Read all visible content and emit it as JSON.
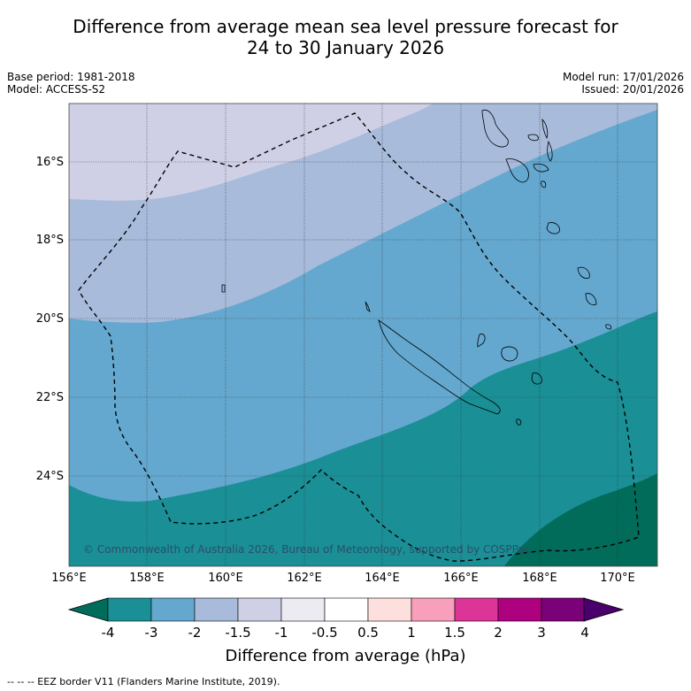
{
  "title_line1": "Difference from average mean sea level pressure forecast for",
  "title_line2": "24 to 30 January 2026",
  "base_period": "Base period: 1981-2018",
  "model": "Model: ACCESS-S2",
  "model_run": "Model run: 17/01/2026",
  "issued": "Issued: 20/01/2026",
  "copyright": "© Commonwealth of Australia 2026, Bureau of Meteorology, supported by COSPPac",
  "lat_labels": [
    "16°S",
    "18°S",
    "20°S",
    "22°S",
    "24°S"
  ],
  "lon_labels": [
    "156°E",
    "158°E",
    "160°E",
    "162°E",
    "164°E",
    "166°E",
    "168°E",
    "170°E"
  ],
  "colorbar": {
    "labels": [
      "-4",
      "-3",
      "-2",
      "-1.5",
      "-1",
      "-0.5",
      "0.5",
      "1",
      "1.5",
      "2",
      "3",
      "4"
    ],
    "colors": [
      "#1a8f96",
      "#64a8cf",
      "#a8bbdb",
      "#cfd0e6",
      "#ecebf1",
      "#ffffff",
      "#fde0dd",
      "#f89fbb",
      "#dd3497",
      "#ad0180",
      "#7a0177"
    ],
    "extend_low_color": "#016c59",
    "extend_high_color": "#49006a"
  },
  "colorbar_title": "Difference from average (hPa)",
  "footnote": "--  --  -- EEZ border V11 (Flanders Marine Institute, 2019).",
  "map_colors": {
    "band_minus1_to_minus1_5": "#cfd0e6",
    "band_minus1_5_to_minus2": "#a8bbdb",
    "band_minus2_to_minus3": "#64a8cf",
    "band_minus3_to_minus4": "#1a8f96",
    "band_below_minus4": "#016c59"
  }
}
